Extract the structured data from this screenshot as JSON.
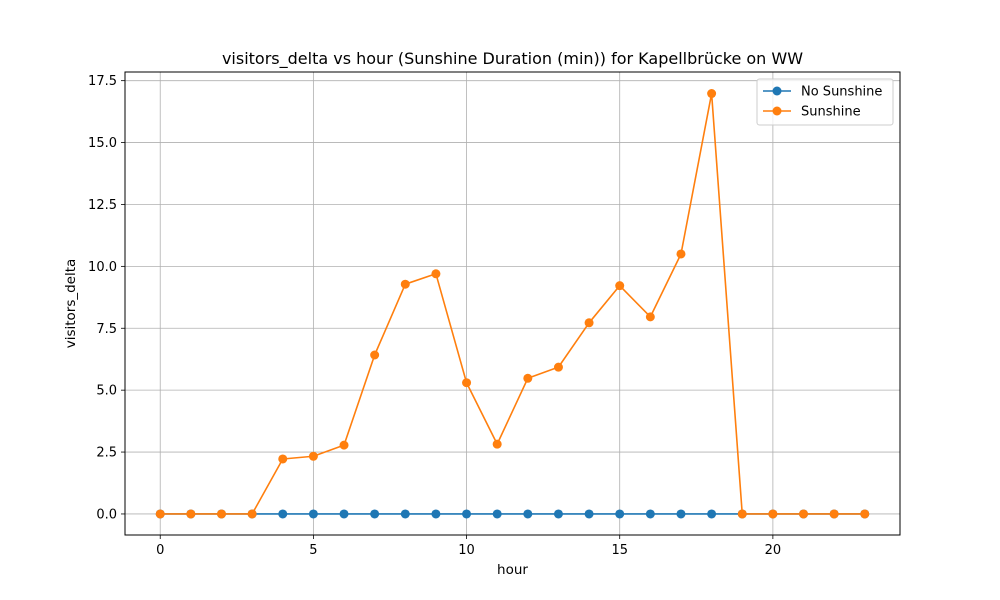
{
  "chart_data": {
    "type": "line",
    "title": "visitors_delta vs hour (Sunshine Duration (min)) for Kapellbrücke on WW",
    "xlabel": "hour",
    "ylabel": "visitors_delta",
    "xlim": [
      -1.15,
      24.15
    ],
    "ylim": [
      -0.85,
      17.85
    ],
    "xticks": [
      0,
      5,
      10,
      15,
      20
    ],
    "yticks": [
      0.0,
      2.5,
      5.0,
      7.5,
      10.0,
      12.5,
      15.0,
      17.5
    ],
    "ytick_labels": [
      "0.0",
      "2.5",
      "5.0",
      "7.5",
      "10.0",
      "12.5",
      "15.0",
      "17.5"
    ],
    "grid": true,
    "legend_position": "top-right",
    "series": [
      {
        "name": "No Sunshine",
        "color": "#1f77b4",
        "x": [
          0,
          1,
          2,
          3,
          4,
          5,
          6,
          7,
          8,
          9,
          10,
          11,
          12,
          13,
          14,
          15,
          16,
          17,
          18,
          19,
          20,
          21,
          22,
          23
        ],
        "y": [
          0,
          0,
          0,
          0,
          0,
          0,
          0,
          0,
          0,
          0,
          0,
          0,
          0,
          0,
          0,
          0,
          0,
          0,
          0,
          0,
          0,
          0,
          0,
          0
        ]
      },
      {
        "name": "Sunshine",
        "color": "#ff7f0e",
        "x": [
          0,
          1,
          2,
          3,
          4,
          5,
          6,
          7,
          8,
          9,
          10,
          11,
          12,
          13,
          14,
          15,
          16,
          17,
          18,
          19,
          20,
          21,
          22,
          23
        ],
        "y": [
          0,
          0,
          0,
          0,
          2.22,
          2.33,
          2.78,
          6.42,
          9.28,
          9.7,
          5.3,
          2.82,
          5.48,
          5.93,
          7.72,
          9.22,
          7.96,
          10.5,
          16.98,
          0,
          0,
          0,
          0,
          0
        ]
      }
    ]
  }
}
